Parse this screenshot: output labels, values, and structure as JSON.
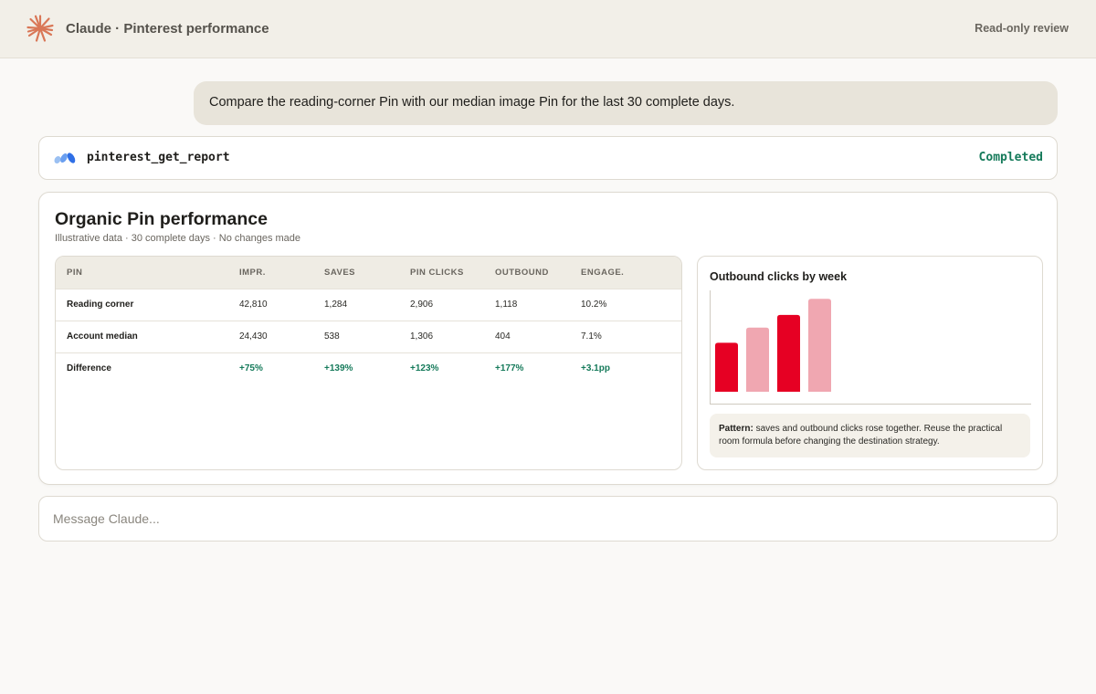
{
  "header": {
    "title": "Claude · Pinterest performance",
    "mode_label": "Read-only review",
    "logo_icon": "claude-sunburst-icon",
    "logo_color": "#d97757"
  },
  "conversation": {
    "user_message": "Compare the reading-corner Pin with our median image Pin for the last 30 complete days."
  },
  "tool_call": {
    "name": "pinterest_get_report",
    "status": "Completed",
    "status_color": "#157a5a",
    "icon": "connector-icon"
  },
  "report": {
    "title": "Organic Pin performance",
    "subtitle": "Illustrative data · 30 complete days · No changes made",
    "table": {
      "columns": [
        "PIN",
        "IMPR.",
        "SAVES",
        "PIN CLICKS",
        "OUTBOUND",
        "ENGAGE."
      ],
      "rows": [
        [
          "Reading corner",
          "42,810",
          "1,284",
          "2,906",
          "1,118",
          "10.2%"
        ],
        [
          "Account median",
          "24,430",
          "538",
          "1,306",
          "404",
          "7.1%"
        ],
        [
          "Difference",
          "+75%",
          "+139%",
          "+123%",
          "+177%",
          "+3.1pp"
        ]
      ]
    },
    "chart": {
      "title": "Outbound clicks by week",
      "pattern_label": "Pattern:",
      "pattern_text": " saves and outbound clicks rose together. Reuse the practical room formula before changing the destination strategy."
    }
  },
  "chart_data": {
    "type": "bar",
    "title": "Outbound clicks by week",
    "categories": [
      "",
      "",
      "",
      ""
    ],
    "values": [
      58,
      76,
      91,
      110
    ],
    "colors": [
      "#e60023",
      "#f0a7b1",
      "#e60023",
      "#f0a7b1"
    ],
    "ylim": [
      0,
      120
    ],
    "grid": false,
    "xlabel": "",
    "ylabel": ""
  },
  "composer": {
    "placeholder": "Message Claude..."
  }
}
